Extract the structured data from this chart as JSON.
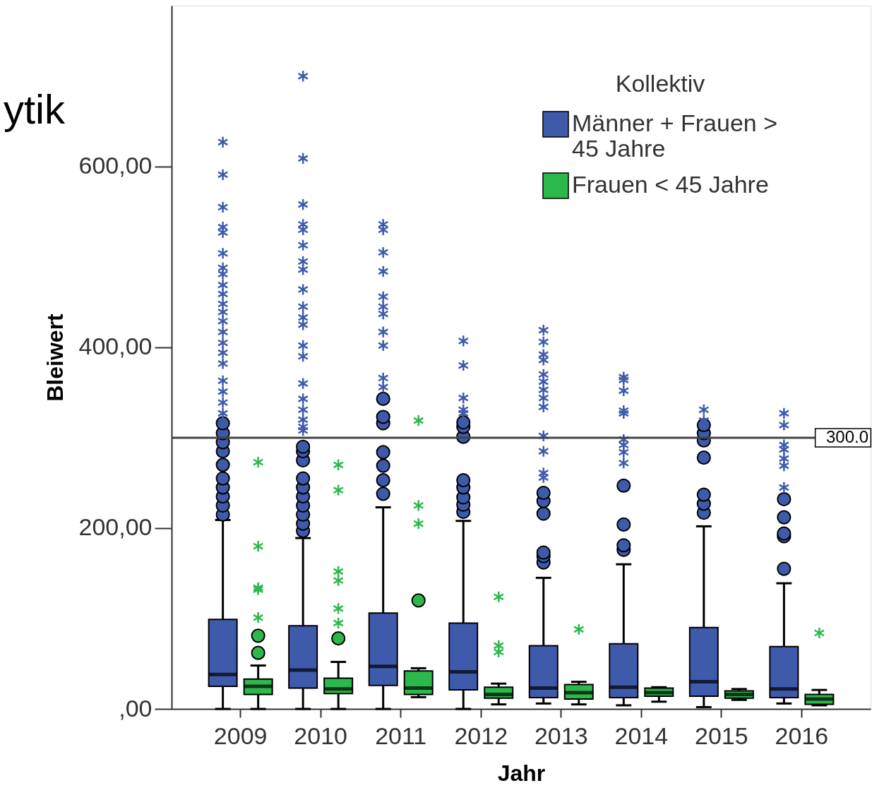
{
  "chart_data": {
    "type": "box",
    "xlabel": "Jahr",
    "ylabel": "Bleiwert",
    "legend_title": "Kollektiv",
    "legend": "top right",
    "grid": false,
    "annotations": [
      "ytik"
    ],
    "categories": [
      "2009",
      "2010",
      "2011",
      "2012",
      "2013",
      "2014",
      "2015",
      "2016"
    ],
    "ylim": [
      0,
      778
    ],
    "yticks": [
      {
        "value": 0,
        "label": ",00"
      },
      {
        "value": 200,
        "label": "200,00"
      },
      {
        "value": 400,
        "label": "400,00"
      },
      {
        "value": 600,
        "label": "600,00"
      }
    ],
    "ref_lines": [
      {
        "axis": "y",
        "value": 300,
        "label": "300.0"
      }
    ],
    "series": [
      {
        "name": "Männer + Frauen > 45 Jahre",
        "color": "#3f5aab",
        "boxes": [
          {
            "low": 0,
            "q1": 25,
            "median": 38,
            "q3": 99,
            "high": 209,
            "outliers": [
              215,
              225,
              235,
              245,
              255,
              270,
              285,
              295,
              305,
              316,
              327,
              339,
              351,
              363,
              382,
              394,
              405,
              417,
              429,
              439,
              448,
              459,
              469,
              481,
              488,
              504,
              527,
              533,
              555,
              591,
              627
            ]
          },
          {
            "low": 0,
            "q1": 23,
            "median": 43,
            "q3": 92,
            "high": 189,
            "outliers": [
              197,
              205,
              215,
              225,
              235,
              245,
              255,
              275,
              285,
              290,
              308,
              312,
              320,
              331,
              343,
              360,
              390,
              402,
              425,
              433,
              445,
              464,
              486,
              495,
              513,
              530,
              536,
              558,
              609,
              700
            ]
          },
          {
            "low": 0,
            "q1": 26,
            "median": 47,
            "q3": 106,
            "high": 223,
            "outliers": [
              238,
              253,
              269,
              284,
              316,
              323,
              343,
              356,
              366,
              402,
              417,
              437,
              445,
              456,
              484,
              505,
              530,
              536
            ]
          },
          {
            "low": 0,
            "q1": 21,
            "median": 41,
            "q3": 95,
            "high": 208,
            "outliers": [
              218,
              226,
              234,
              245,
              253,
              301,
              312,
              317,
              327,
              331,
              344,
              380,
              407
            ]
          },
          {
            "low": 6,
            "q1": 12.5,
            "median": 23,
            "q3": 70,
            "high": 145,
            "outliers": [
              162,
              169,
              173,
              216,
              230,
              239,
              256,
              261,
              285,
              302,
              334,
              344,
              353,
              362,
              370,
              386,
              392,
              406,
              419
            ]
          },
          {
            "low": 4,
            "q1": 12.5,
            "median": 24,
            "q3": 72,
            "high": 160,
            "outliers": [
              176,
              181,
              204,
              247,
              272,
              284,
              292,
              298,
              327,
              330,
              352,
              364,
              367
            ]
          },
          {
            "low": 2,
            "q1": 14,
            "median": 30,
            "q3": 90,
            "high": 202,
            "outliers": [
              217,
              227,
              237,
              278,
              297,
              305,
              314,
              319,
              331
            ]
          },
          {
            "low": 6,
            "q1": 12.5,
            "median": 22,
            "q3": 69,
            "high": 139,
            "outliers": [
              155,
              191,
              194,
              212,
              232,
              245,
              269,
              277,
              287,
              292,
              314,
              327
            ]
          }
        ]
      },
      {
        "name": "Frauen < 45 Jahre",
        "color": "#2db84c",
        "boxes": [
          {
            "low": 0,
            "q1": 16,
            "median": 25,
            "q3": 33,
            "high": 48,
            "outliers": [
              62,
              81,
              101,
              132,
              134,
              180,
              273
            ]
          },
          {
            "low": 0,
            "q1": 17,
            "median": 22,
            "q3": 34,
            "high": 52,
            "outliers": [
              78,
              95,
              111,
              142,
              152,
              242,
              270
            ]
          },
          {
            "low": 13,
            "q1": 16,
            "median": 23,
            "q3": 42,
            "high": 45,
            "outliers": [
              120,
              205,
              225,
              319
            ]
          },
          {
            "low": 5,
            "q1": 12,
            "median": 16,
            "q3": 24,
            "high": 28,
            "outliers": [
              63,
              70,
              124
            ]
          },
          {
            "low": 5,
            "q1": 11,
            "median": 18,
            "q3": 27,
            "high": 30,
            "outliers": [
              88
            ]
          },
          {
            "low": 8,
            "q1": 14,
            "median": 18,
            "q3": 23,
            "high": 24
          },
          {
            "low": 10,
            "q1": 12,
            "median": 16,
            "q3": 20,
            "high": 22
          },
          {
            "low": 4,
            "q1": 5,
            "median": 11,
            "q3": 16,
            "high": 21,
            "outliers": [
              84
            ]
          }
        ]
      }
    ]
  }
}
